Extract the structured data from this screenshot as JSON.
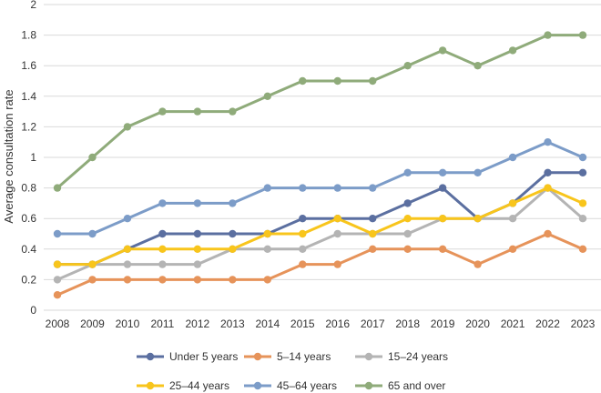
{
  "chart_data": {
    "type": "line",
    "title": "",
    "xlabel": "",
    "ylabel": "Average consultation rate",
    "ylim": [
      0,
      2
    ],
    "yticks": [
      "0",
      "0.2",
      "0.4",
      "0.6",
      "0.8",
      "1",
      "1.2",
      "1.4",
      "1.6",
      "1.8",
      "2"
    ],
    "x": [
      "2008",
      "2009",
      "2010",
      "2011",
      "2012",
      "2013",
      "2014",
      "2015",
      "2016",
      "2017",
      "2018",
      "2019",
      "2020",
      "2021",
      "2022",
      "2023"
    ],
    "grid": "horizontal",
    "legend_position": "bottom",
    "series": [
      {
        "name": "Under 5 years",
        "color": "#5b6fa0",
        "values": [
          0.3,
          0.3,
          0.4,
          0.5,
          0.5,
          0.5,
          0.5,
          0.6,
          0.6,
          0.6,
          0.7,
          0.8,
          0.6,
          0.7,
          0.9,
          0.9
        ]
      },
      {
        "name": "5–14 years",
        "color": "#e6935a",
        "values": [
          0.1,
          0.2,
          0.2,
          0.2,
          0.2,
          0.2,
          0.2,
          0.3,
          0.3,
          0.4,
          0.4,
          0.4,
          0.3,
          0.4,
          0.5,
          0.4
        ]
      },
      {
        "name": "15–24 years",
        "color": "#b4b4b4",
        "values": [
          0.2,
          0.3,
          0.3,
          0.3,
          0.3,
          0.4,
          0.4,
          0.4,
          0.5,
          0.5,
          0.5,
          0.6,
          0.6,
          0.6,
          0.8,
          0.6
        ]
      },
      {
        "name": "25–44 years",
        "color": "#f8c51c",
        "values": [
          0.3,
          0.3,
          0.4,
          0.4,
          0.4,
          0.4,
          0.5,
          0.5,
          0.6,
          0.5,
          0.6,
          0.6,
          0.6,
          0.7,
          0.8,
          0.7
        ]
      },
      {
        "name": "45–64 years",
        "color": "#7c9cc8",
        "values": [
          0.5,
          0.5,
          0.6,
          0.7,
          0.7,
          0.7,
          0.8,
          0.8,
          0.8,
          0.8,
          0.9,
          0.9,
          0.9,
          1.0,
          1.1,
          1.0
        ]
      },
      {
        "name": "65 and over",
        "color": "#8fab7a",
        "values": [
          0.8,
          1.0,
          1.2,
          1.3,
          1.3,
          1.3,
          1.4,
          1.5,
          1.5,
          1.5,
          1.6,
          1.7,
          1.6,
          1.7,
          1.8,
          1.8
        ]
      }
    ]
  }
}
